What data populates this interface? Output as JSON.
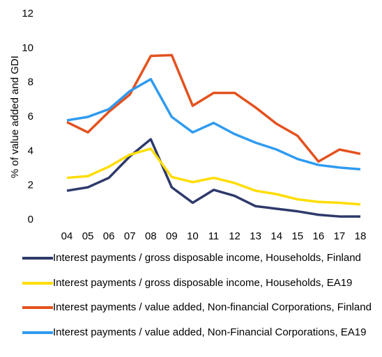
{
  "chart_data": {
    "type": "line",
    "y_label": "% of value added and GDI",
    "categories": [
      "04",
      "05",
      "06",
      "07",
      "08",
      "09",
      "10",
      "11",
      "12",
      "13",
      "14",
      "15",
      "16",
      "17",
      "18"
    ],
    "ylim": [
      0,
      12
    ],
    "yticks": [
      0,
      2,
      4,
      6,
      8,
      10,
      12
    ],
    "grid": false,
    "legend": "bottom",
    "series": [
      {
        "name": "Interest payments / gross disposable income, Households, Finland",
        "color": "#2e3a6b",
        "values": [
          1.7,
          1.9,
          2.45,
          3.7,
          4.7,
          1.9,
          1.0,
          1.75,
          1.4,
          0.8,
          0.65,
          0.5,
          0.3,
          0.2,
          0.2
        ]
      },
      {
        "name": "Interest payments / gross disposable income, Households, EA19",
        "color": "#ffdd00",
        "values": [
          2.45,
          2.55,
          3.1,
          3.8,
          4.15,
          2.5,
          2.2,
          2.45,
          2.15,
          1.7,
          1.5,
          1.2,
          1.05,
          1.0,
          0.9
        ]
      },
      {
        "name": "Interest payments / value added, Non-financial Corporations, Finland",
        "color": "#e4511e",
        "values": [
          5.7,
          5.1,
          6.3,
          7.3,
          9.55,
          9.6,
          6.65,
          7.4,
          7.4,
          6.55,
          5.6,
          4.9,
          3.4,
          4.1,
          3.85
        ]
      },
      {
        "name": "Interest payments / value added, Non-Financial Corporations, EA19",
        "color": "#2f9bf0",
        "values": [
          5.8,
          6.0,
          6.45,
          7.5,
          8.2,
          6.0,
          5.1,
          5.65,
          5.0,
          4.5,
          4.1,
          3.55,
          3.2,
          3.05,
          2.95
        ]
      }
    ]
  }
}
